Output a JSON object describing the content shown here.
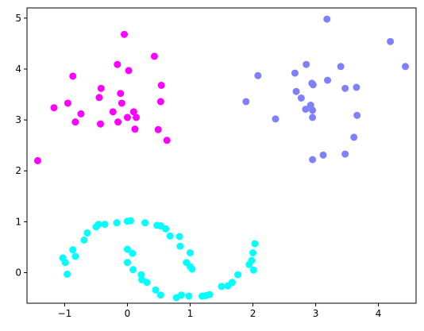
{
  "chart_data": {
    "type": "scatter",
    "title": "",
    "xlabel": "",
    "ylabel": "",
    "xlim": [
      -1.6,
      4.6
    ],
    "ylim": [
      -0.6,
      5.2
    ],
    "xticks": [
      -1,
      0,
      1,
      2,
      3,
      4
    ],
    "yticks": [
      0,
      1,
      2,
      3,
      4,
      5
    ],
    "xtick_labels": [
      "−1",
      "0",
      "1",
      "2",
      "3",
      "4"
    ],
    "ytick_labels": [
      "0",
      "1",
      "2",
      "3",
      "4",
      "5"
    ],
    "grid": false,
    "legend": "none",
    "series": [
      {
        "color": "#ff00ff",
        "points": [
          [
            -1.43,
            2.2
          ],
          [
            -0.87,
            3.86
          ],
          [
            -0.16,
            4.09
          ],
          [
            -0.05,
            4.68
          ],
          [
            0.43,
            4.25
          ],
          [
            0.02,
            3.97
          ],
          [
            -1.17,
            3.24
          ],
          [
            -0.95,
            3.33
          ],
          [
            -0.74,
            3.12
          ],
          [
            -0.83,
            2.96
          ],
          [
            -0.42,
            3.62
          ],
          [
            -0.45,
            3.44
          ],
          [
            -0.43,
            2.92
          ],
          [
            -0.11,
            3.52
          ],
          [
            -0.23,
            3.16
          ],
          [
            -0.09,
            3.33
          ],
          [
            -0.15,
            2.96
          ],
          [
            0.0,
            3.05
          ],
          [
            0.1,
            3.16
          ],
          [
            0.14,
            3.05
          ],
          [
            0.12,
            2.82
          ],
          [
            0.54,
            3.68
          ],
          [
            0.53,
            3.36
          ],
          [
            0.49,
            2.81
          ],
          [
            0.63,
            2.6
          ]
        ]
      },
      {
        "color": "#8080ff",
        "points": [
          [
            1.89,
            3.36
          ],
          [
            2.08,
            3.87
          ],
          [
            2.36,
            3.02
          ],
          [
            2.67,
            3.92
          ],
          [
            2.69,
            3.56
          ],
          [
            2.77,
            3.43
          ],
          [
            2.85,
            4.09
          ],
          [
            2.84,
            3.21
          ],
          [
            2.92,
            3.29
          ],
          [
            2.94,
            3.72
          ],
          [
            2.96,
            3.69
          ],
          [
            2.95,
            3.19
          ],
          [
            2.95,
            3.05
          ],
          [
            2.95,
            2.22
          ],
          [
            3.12,
            2.31
          ],
          [
            3.18,
            4.98
          ],
          [
            3.19,
            3.78
          ],
          [
            3.4,
            4.05
          ],
          [
            3.47,
            3.62
          ],
          [
            3.47,
            2.33
          ],
          [
            3.61,
            2.66
          ],
          [
            3.65,
            3.64
          ],
          [
            3.66,
            3.09
          ],
          [
            4.19,
            4.54
          ],
          [
            4.43,
            4.05
          ]
        ]
      },
      {
        "color": "#00ffff",
        "points": [
          [
            -1.03,
            0.29
          ],
          [
            -0.99,
            0.2
          ],
          [
            -0.96,
            -0.03
          ],
          [
            -0.87,
            0.45
          ],
          [
            -0.83,
            0.32
          ],
          [
            -0.69,
            0.64
          ],
          [
            -0.64,
            0.78
          ],
          [
            -0.5,
            0.9
          ],
          [
            -0.46,
            0.95
          ],
          [
            -0.36,
            0.95
          ],
          [
            -0.17,
            0.98
          ],
          [
            0.0,
            1.01
          ],
          [
            0.05,
            1.02
          ],
          [
            0.28,
            0.98
          ],
          [
            0.47,
            0.93
          ],
          [
            0.53,
            0.92
          ],
          [
            0.61,
            0.86
          ],
          [
            0.68,
            0.72
          ],
          [
            0.83,
            0.71
          ],
          [
            0.84,
            0.52
          ],
          [
            1.0,
            0.39
          ],
          [
            0.94,
            0.2
          ],
          [
            1.0,
            0.12
          ],
          [
            1.03,
            0.07
          ],
          [
            0.0,
            0.46
          ],
          [
            0.08,
            0.38
          ],
          [
            0.0,
            0.2
          ],
          [
            0.09,
            0.06
          ],
          [
            0.22,
            -0.04
          ],
          [
            0.23,
            -0.14
          ],
          [
            0.31,
            -0.19
          ],
          [
            0.45,
            -0.34
          ],
          [
            0.53,
            -0.44
          ],
          [
            0.78,
            -0.49
          ],
          [
            0.86,
            -0.44
          ],
          [
            0.98,
            -0.46
          ],
          [
            1.19,
            -0.46
          ],
          [
            1.25,
            -0.45
          ],
          [
            1.31,
            -0.43
          ],
          [
            1.5,
            -0.27
          ],
          [
            1.6,
            -0.26
          ],
          [
            1.67,
            -0.19
          ],
          [
            1.76,
            -0.04
          ],
          [
            1.94,
            0.16
          ],
          [
            1.98,
            0.24
          ],
          [
            2.0,
            0.39
          ],
          [
            2.03,
            0.57
          ],
          [
            2.01,
            0.05
          ]
        ]
      }
    ]
  }
}
